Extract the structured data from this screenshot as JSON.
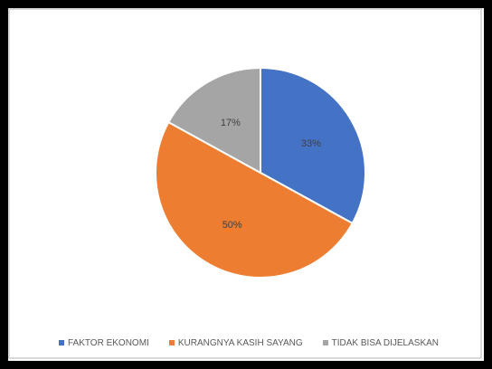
{
  "chart_data": {
    "type": "pie",
    "categories": [
      "FAKTOR EKONOMI",
      "KURANGNYA KASIH SAYANG",
      "TIDAK BISA DIJELASKAN"
    ],
    "values": [
      33,
      50,
      17
    ],
    "labels": [
      "33%",
      "50%",
      "17%"
    ],
    "colors": [
      "#4472c4",
      "#ed7d31",
      "#a5a5a5"
    ],
    "legend": "bottom"
  }
}
